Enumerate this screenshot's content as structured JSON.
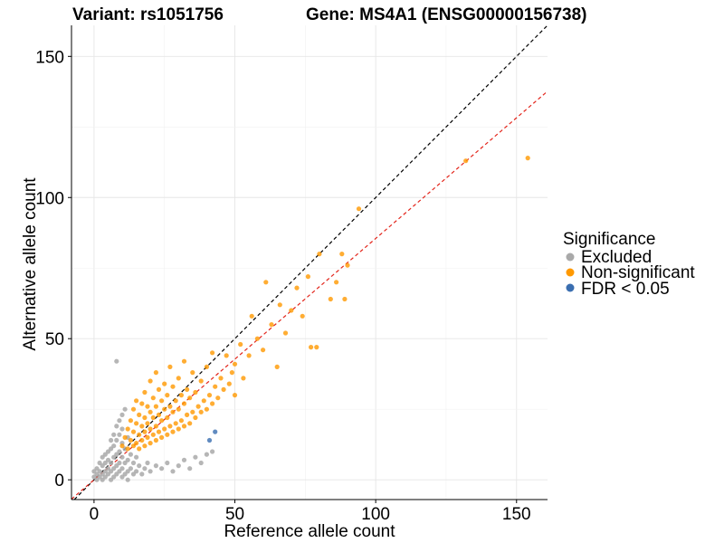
{
  "chart_data": {
    "type": "scatter",
    "title_left": "Variant: rs1051756",
    "title_right": "Gene: MS4A1 (ENSG00000156738)",
    "xlabel": "Reference allele count",
    "ylabel": "Alternative allele count",
    "xlim": [
      -8,
      161
    ],
    "ylim": [
      -7,
      161
    ],
    "xticks": [
      0,
      50,
      100,
      150
    ],
    "yticks": [
      0,
      50,
      100,
      150
    ],
    "grid": true,
    "legend": {
      "title": "Significance",
      "position": "right",
      "entries": [
        {
          "label": "Excluded",
          "color": "#a9a9a9"
        },
        {
          "label": "Non-significant",
          "color": "#ff9900"
        },
        {
          "label": "FDR < 0.05",
          "color": "#3a6eb0"
        }
      ]
    },
    "reference_lines": [
      {
        "name": "identity",
        "slope": 1.0,
        "intercept": 0,
        "color": "#000000",
        "dash": true
      },
      {
        "name": "fit",
        "slope": 0.855,
        "intercept": 0,
        "color": "#e3251b",
        "dash": true
      }
    ],
    "series": [
      {
        "name": "Excluded",
        "color": "#a9a9a9",
        "points": [
          [
            0,
            1
          ],
          [
            0,
            3
          ],
          [
            1,
            0
          ],
          [
            1,
            2
          ],
          [
            1,
            4
          ],
          [
            2,
            1
          ],
          [
            2,
            3
          ],
          [
            2,
            6
          ],
          [
            3,
            0
          ],
          [
            3,
            2
          ],
          [
            3,
            5
          ],
          [
            3,
            8
          ],
          [
            4,
            1
          ],
          [
            4,
            3
          ],
          [
            4,
            6
          ],
          [
            4,
            9
          ],
          [
            5,
            2
          ],
          [
            5,
            4
          ],
          [
            5,
            7
          ],
          [
            5,
            10
          ],
          [
            6,
            0
          ],
          [
            6,
            3
          ],
          [
            6,
            6
          ],
          [
            6,
            11
          ],
          [
            7,
            1
          ],
          [
            7,
            4
          ],
          [
            7,
            8
          ],
          [
            7,
            12
          ],
          [
            8,
            2
          ],
          [
            8,
            5
          ],
          [
            8,
            9
          ],
          [
            8,
            14
          ],
          [
            9,
            3
          ],
          [
            9,
            6
          ],
          [
            9,
            10
          ],
          [
            9,
            16
          ],
          [
            10,
            1
          ],
          [
            10,
            4
          ],
          [
            10,
            8
          ],
          [
            10,
            13
          ],
          [
            10,
            18
          ],
          [
            11,
            2
          ],
          [
            11,
            6
          ],
          [
            11,
            11
          ],
          [
            12,
            0
          ],
          [
            12,
            3
          ],
          [
            12,
            7
          ],
          [
            12,
            15
          ],
          [
            13,
            4
          ],
          [
            13,
            9
          ],
          [
            14,
            2
          ],
          [
            14,
            6
          ],
          [
            15,
            3
          ],
          [
            15,
            8
          ],
          [
            16,
            5
          ],
          [
            17,
            2
          ],
          [
            18,
            4
          ],
          [
            19,
            6
          ],
          [
            20,
            3
          ],
          [
            22,
            5
          ],
          [
            24,
            4
          ],
          [
            26,
            6
          ],
          [
            28,
            3
          ],
          [
            30,
            5
          ],
          [
            32,
            7
          ],
          [
            34,
            4
          ],
          [
            36,
            8
          ],
          [
            38,
            6
          ],
          [
            40,
            9
          ],
          [
            42,
            10
          ],
          [
            6,
            14
          ],
          [
            7,
            16
          ],
          [
            8,
            19
          ],
          [
            9,
            21
          ],
          [
            10,
            23
          ],
          [
            11,
            25
          ],
          [
            8,
            42
          ]
        ]
      },
      {
        "name": "Non-significant",
        "color": "#ff9900",
        "points": [
          [
            10,
            12
          ],
          [
            11,
            15
          ],
          [
            12,
            11
          ],
          [
            12,
            18
          ],
          [
            13,
            14
          ],
          [
            13,
            21
          ],
          [
            14,
            12
          ],
          [
            14,
            17
          ],
          [
            14,
            25
          ],
          [
            15,
            13
          ],
          [
            15,
            20
          ],
          [
            15,
            28
          ],
          [
            16,
            11
          ],
          [
            16,
            16
          ],
          [
            16,
            23
          ],
          [
            17,
            14
          ],
          [
            17,
            19
          ],
          [
            17,
            27
          ],
          [
            18,
            12
          ],
          [
            18,
            17
          ],
          [
            18,
            22
          ],
          [
            18,
            31
          ],
          [
            19,
            15
          ],
          [
            19,
            20
          ],
          [
            19,
            26
          ],
          [
            20,
            13
          ],
          [
            20,
            18
          ],
          [
            20,
            24
          ],
          [
            20,
            35
          ],
          [
            21,
            16
          ],
          [
            21,
            22
          ],
          [
            21,
            29
          ],
          [
            22,
            14
          ],
          [
            22,
            19
          ],
          [
            22,
            26
          ],
          [
            22,
            38
          ],
          [
            23,
            17
          ],
          [
            23,
            23
          ],
          [
            23,
            32
          ],
          [
            24,
            15
          ],
          [
            24,
            21
          ],
          [
            24,
            28
          ],
          [
            25,
            18
          ],
          [
            25,
            25
          ],
          [
            25,
            34
          ],
          [
            26,
            16
          ],
          [
            26,
            22
          ],
          [
            26,
            30
          ],
          [
            27,
            19
          ],
          [
            27,
            26
          ],
          [
            27,
            40
          ],
          [
            28,
            17
          ],
          [
            28,
            24
          ],
          [
            28,
            33
          ],
          [
            29,
            20
          ],
          [
            29,
            28
          ],
          [
            30,
            18
          ],
          [
            30,
            25
          ],
          [
            30,
            36
          ],
          [
            31,
            21
          ],
          [
            31,
            30
          ],
          [
            32,
            19
          ],
          [
            32,
            27
          ],
          [
            32,
            42
          ],
          [
            33,
            23
          ],
          [
            33,
            32
          ],
          [
            34,
            20
          ],
          [
            34,
            29
          ],
          [
            35,
            24
          ],
          [
            35,
            38
          ],
          [
            36,
            22
          ],
          [
            36,
            31
          ],
          [
            37,
            26
          ],
          [
            38,
            24
          ],
          [
            38,
            35
          ],
          [
            39,
            28
          ],
          [
            40,
            25
          ],
          [
            40,
            40
          ],
          [
            41,
            30
          ],
          [
            42,
            27
          ],
          [
            42,
            45
          ],
          [
            43,
            33
          ],
          [
            44,
            29
          ],
          [
            45,
            36
          ],
          [
            46,
            32
          ],
          [
            47,
            44
          ],
          [
            48,
            34
          ],
          [
            49,
            38
          ],
          [
            50,
            41
          ],
          [
            50,
            30
          ],
          [
            52,
            48
          ],
          [
            53,
            36
          ],
          [
            55,
            44
          ],
          [
            56,
            58
          ],
          [
            58,
            50
          ],
          [
            60,
            46
          ],
          [
            61,
            70
          ],
          [
            63,
            55
          ],
          [
            65,
            40
          ],
          [
            66,
            62
          ],
          [
            68,
            52
          ],
          [
            70,
            60
          ],
          [
            72,
            68
          ],
          [
            74,
            58
          ],
          [
            76,
            72
          ],
          [
            77,
            47
          ],
          [
            79,
            47
          ],
          [
            80,
            80
          ],
          [
            84,
            64
          ],
          [
            86,
            70
          ],
          [
            88,
            80
          ],
          [
            89,
            64
          ],
          [
            90,
            76
          ],
          [
            94,
            96
          ],
          [
            132,
            113
          ],
          [
            154,
            114
          ]
        ]
      },
      {
        "name": "FDR < 0.05",
        "color": "#3a6eb0",
        "points": [
          [
            41,
            14
          ],
          [
            43,
            17
          ]
        ]
      }
    ]
  }
}
